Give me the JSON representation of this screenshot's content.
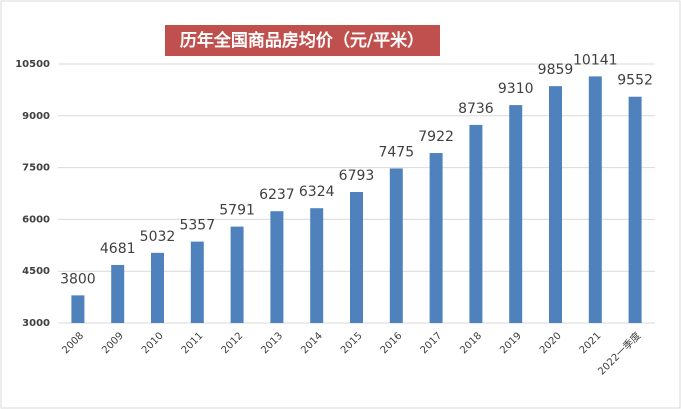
{
  "chart_data": {
    "type": "bar",
    "title": "历年全国商品房均价（元/平米）",
    "categories": [
      "2008",
      "2009",
      "2010",
      "2011",
      "2012",
      "2013",
      "2014",
      "2015",
      "2016",
      "2017",
      "2018",
      "2019",
      "2020",
      "2021",
      "2022一季度"
    ],
    "values": [
      3800,
      4681,
      5032,
      5357,
      5791,
      6237,
      6324,
      6793,
      7475,
      7922,
      8736,
      9310,
      9859,
      10141,
      9552
    ],
    "color": "#4f81bd",
    "ylim": [
      3000,
      10500
    ],
    "yticks": [
      3000,
      4500,
      6000,
      7500,
      9000,
      10500
    ],
    "grid": true
  }
}
